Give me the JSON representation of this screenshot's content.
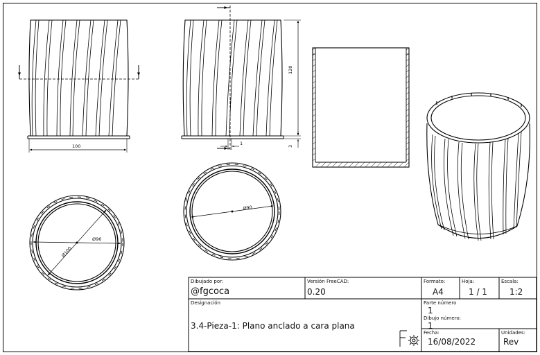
{
  "dimensions": {
    "front_width": "100",
    "side_height": "120",
    "base_thickness": "3",
    "offset": "1",
    "outer_diameter": "Ø100",
    "inner_diameter_bottom": "Ø96",
    "inner_diameter_top": "Ø90"
  },
  "title_block": {
    "drawn_by_label": "Dibujado por:",
    "drawn_by": "@fgcoca",
    "version_label": "Versión FreeCAD:",
    "version": "0.20",
    "format_label": "Formato:",
    "format": "A4",
    "sheet_label": "Hoja:",
    "sheet": "1 / 1",
    "scale_label": "Escala:",
    "scale": "1:2",
    "designation_label": "Designación",
    "designation": "3.4-Pieza-1: Plano anclado a cara plana",
    "part_number_label": "Parte número",
    "part_number": "1",
    "drawing_number_label": "Dibujo número:",
    "drawing_number": "1",
    "date_label": "Fecha:",
    "date": "16/08/2022",
    "units_label": "Unidades:",
    "units": "Rev"
  }
}
